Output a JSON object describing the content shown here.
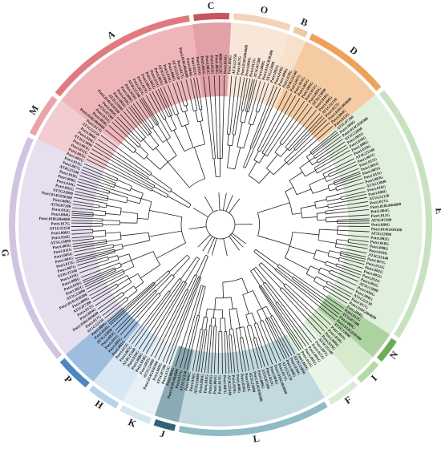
{
  "figure": {
    "groups": [
      {
        "label": "C",
        "color": "#c9535d",
        "start": -8,
        "end": 3
      },
      {
        "label": "O",
        "color": "#f2d3b8",
        "start": 3,
        "end": 20
      },
      {
        "label": "B",
        "color": "#f0c9a0",
        "start": 20,
        "end": 25
      },
      {
        "label": "D",
        "color": "#eda15a",
        "start": 25,
        "end": 50
      },
      {
        "label": "E",
        "color": "#c8e2c1",
        "start": 50,
        "end": 123
      },
      {
        "label": "N",
        "color": "#6aad56",
        "start": 123,
        "end": 131
      },
      {
        "label": "I",
        "color": "#b5dba5",
        "start": 131,
        "end": 139
      },
      {
        "label": "F",
        "color": "#d7ecd4",
        "start": 139,
        "end": 149
      },
      {
        "label": "L",
        "color": "#8fbac6",
        "start": 149,
        "end": 192
      },
      {
        "label": "J",
        "color": "#2e6475",
        "start": 192,
        "end": 199
      },
      {
        "label": "K",
        "color": "#d3e5ef",
        "start": 199,
        "end": 209
      },
      {
        "label": "H",
        "color": "#b7d3ea",
        "start": 209,
        "end": 219
      },
      {
        "label": "P",
        "color": "#4f86c4",
        "start": 219,
        "end": 230
      },
      {
        "label": "G",
        "color": "#cfc4e2",
        "start": 230,
        "end": 295
      },
      {
        "label": "M",
        "color": "#e9a3a9",
        "start": 295,
        "end": 308
      },
      {
        "label": "A",
        "color": "#e07a80",
        "start": 308,
        "end": 352
      }
    ],
    "leaf_labels": [
      "Potri.015G",
      "Potri.001G",
      "Potri.005G",
      "Potri.011G",
      "Potri.003G",
      "AT3G13890",
      "Potri.016G",
      "Potri.006G",
      "AT1G52150",
      "Potri.017G",
      "Potri.018G064600",
      "Potri.004G",
      "Potri.012G",
      "AT5G07200",
      "Potri.009G",
      "Potri.014G030300",
      "AT2G22090",
      "Potri.002G",
      "Potri.010G",
      "Potri.008G",
      "Potri.019G",
      "AT4G25340",
      "Potri.007G"
    ]
  }
}
